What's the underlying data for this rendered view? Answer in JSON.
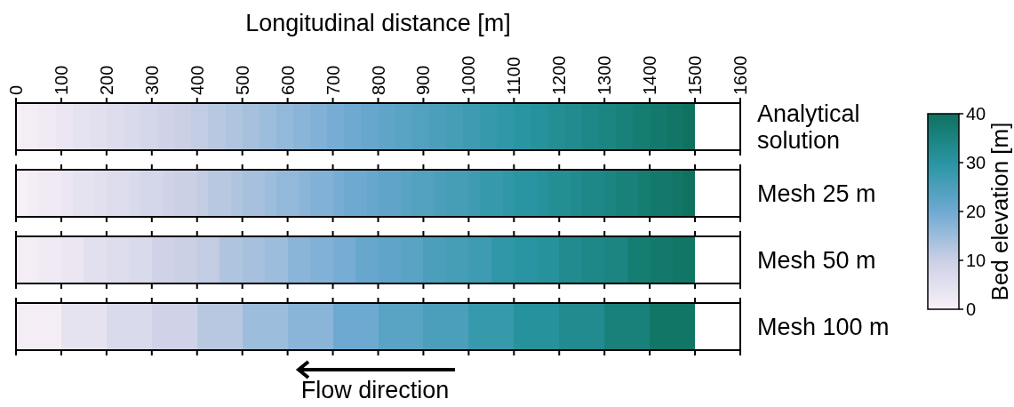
{
  "chart_data": {
    "type": "heatmap",
    "xlabel": "Longitudinal distance [m]",
    "xlim": [
      0,
      1600
    ],
    "xticks": [
      0,
      100,
      200,
      300,
      400,
      500,
      600,
      700,
      800,
      900,
      1000,
      1100,
      1200,
      1300,
      1400,
      1500,
      1600
    ],
    "y_categories": [
      "Analytical solution",
      "Mesh 25 m",
      "Mesh 50 m",
      "Mesh 100 m"
    ],
    "x": [
      6.25,
      18.75,
      31.25,
      43.75,
      56.25,
      68.75,
      81.25,
      93.75,
      106.25,
      118.75,
      131.25,
      143.75,
      156.25,
      168.75,
      181.25,
      193.75,
      206.25,
      218.75,
      231.25,
      243.75,
      256.25,
      268.75,
      281.25,
      293.75,
      306.25,
      318.75,
      331.25,
      343.75,
      356.25,
      368.75,
      381.25,
      393.75,
      406.25,
      418.75,
      431.25,
      443.75,
      456.25,
      468.75,
      481.25,
      493.75,
      506.25,
      518.75,
      531.25,
      543.75,
      556.25,
      568.75,
      581.25,
      593.75,
      606.25,
      618.75,
      631.25,
      643.75,
      656.25,
      668.75,
      681.25,
      693.75,
      706.25,
      718.75,
      731.25,
      743.75,
      756.25,
      768.75,
      781.25,
      793.75,
      806.25,
      818.75,
      831.25,
      843.75,
      856.25,
      868.75,
      881.25,
      893.75,
      906.25,
      918.75,
      931.25,
      943.75,
      956.25,
      968.75,
      981.25,
      993.75,
      1006.25,
      1018.75,
      1031.25,
      1043.75,
      1056.25,
      1068.75,
      1081.25,
      1093.75,
      1106.25,
      1118.75,
      1131.25,
      1143.75,
      1156.25,
      1168.75,
      1181.25,
      1193.75,
      1206.25,
      1218.75,
      1231.25,
      1243.75,
      1256.25,
      1268.75,
      1281.25,
      1293.75,
      1306.25,
      1318.75,
      1331.25,
      1343.75,
      1356.25,
      1368.75,
      1381.25,
      1393.75,
      1406.25,
      1418.75,
      1431.25,
      1443.75,
      1456.25,
      1468.75,
      1481.25,
      1493.75
    ],
    "cells": [
      [
        0,
        1,
        1,
        1,
        2,
        2,
        2,
        3,
        3,
        3,
        4,
        4,
        4,
        5,
        5,
        5,
        6,
        6,
        6,
        7,
        7,
        7,
        8,
        8,
        8,
        9,
        9,
        9,
        10,
        10,
        10,
        11,
        11,
        11,
        12,
        12,
        12,
        13,
        13,
        13,
        14,
        14,
        14,
        15,
        15,
        15,
        16,
        16,
        16,
        17,
        17,
        17,
        18,
        18,
        18,
        19,
        19,
        19,
        20,
        20,
        20,
        21,
        21,
        21,
        22,
        22,
        22,
        23,
        23,
        23,
        24,
        24,
        24,
        25,
        25,
        25,
        26,
        26,
        26,
        27,
        27,
        27,
        28,
        28,
        28,
        29,
        29,
        29,
        30,
        30,
        30,
        31,
        31,
        31,
        32,
        32,
        32,
        33,
        33,
        33,
        34,
        34,
        34,
        35,
        35,
        35,
        36,
        36,
        36,
        37,
        37,
        37,
        38,
        38,
        38,
        39,
        39,
        39,
        40,
        40
      ],
      [
        0,
        0,
        1,
        1,
        2,
        2,
        2,
        2,
        3,
        3,
        4,
        4,
        4,
        4,
        5,
        5,
        6,
        6,
        6,
        6,
        7,
        7,
        8,
        8,
        8,
        8,
        9,
        9,
        10,
        10,
        10,
        10,
        11,
        11,
        12,
        12,
        12,
        12,
        13,
        13,
        14,
        14,
        14,
        14,
        15,
        15,
        16,
        16,
        16,
        16,
        17,
        17,
        18,
        18,
        18,
        18,
        19,
        19,
        20,
        20,
        20,
        20,
        21,
        21,
        22,
        22,
        22,
        22,
        23,
        23,
        24,
        24,
        24,
        24,
        25,
        25,
        26,
        26,
        26,
        26,
        27,
        27,
        28,
        28,
        28,
        28,
        29,
        29,
        30,
        30,
        30,
        30,
        31,
        31,
        32,
        32,
        32,
        32,
        33,
        33,
        34,
        34,
        34,
        34,
        35,
        35,
        36,
        36,
        36,
        36,
        37,
        37,
        38,
        38,
        38,
        38,
        39,
        39,
        40,
        40
      ],
      [
        1,
        1,
        1,
        1,
        2,
        2,
        2,
        2,
        3,
        3,
        3,
        3,
        5,
        5,
        5,
        5,
        6,
        6,
        6,
        6,
        7,
        7,
        7,
        7,
        9,
        9,
        9,
        9,
        10,
        10,
        10,
        10,
        11,
        11,
        11,
        11,
        13,
        13,
        13,
        13,
        14,
        14,
        14,
        14,
        15,
        15,
        15,
        15,
        17,
        17,
        17,
        17,
        18,
        18,
        18,
        18,
        19,
        19,
        19,
        19,
        21,
        21,
        21,
        21,
        22,
        22,
        22,
        22,
        23,
        23,
        23,
        23,
        25,
        25,
        25,
        25,
        26,
        26,
        26,
        26,
        27,
        27,
        27,
        27,
        29,
        29,
        29,
        29,
        30,
        30,
        30,
        30,
        31,
        31,
        31,
        31,
        33,
        33,
        33,
        33,
        34,
        34,
        34,
        34,
        35,
        35,
        35,
        35,
        37,
        37,
        37,
        37,
        38,
        38,
        38,
        38,
        39,
        39,
        39,
        39
      ],
      [
        1,
        1,
        1,
        1,
        1,
        1,
        1,
        1,
        4,
        4,
        4,
        4,
        4,
        4,
        4,
        4,
        7,
        7,
        7,
        7,
        7,
        7,
        7,
        7,
        9,
        9,
        9,
        9,
        9,
        9,
        9,
        9,
        12,
        12,
        12,
        12,
        12,
        12,
        12,
        12,
        15,
        15,
        15,
        15,
        15,
        15,
        15,
        15,
        17,
        17,
        17,
        17,
        17,
        17,
        17,
        17,
        20,
        20,
        20,
        20,
        20,
        20,
        20,
        20,
        23,
        23,
        23,
        23,
        23,
        23,
        23,
        23,
        25,
        25,
        25,
        25,
        25,
        25,
        25,
        25,
        28,
        28,
        28,
        28,
        28,
        28,
        28,
        28,
        31,
        31,
        31,
        31,
        31,
        31,
        31,
        31,
        33,
        33,
        33,
        33,
        33,
        33,
        33,
        33,
        36,
        36,
        36,
        36,
        36,
        36,
        36,
        36,
        39,
        39,
        39,
        39,
        39,
        39,
        39,
        39
      ]
    ],
    "clim": [
      0,
      40
    ],
    "cticks": [
      0,
      10,
      20,
      30,
      40
    ],
    "clabel": "Bed elevation [m]",
    "annotations": [
      "Flow direction"
    ]
  }
}
